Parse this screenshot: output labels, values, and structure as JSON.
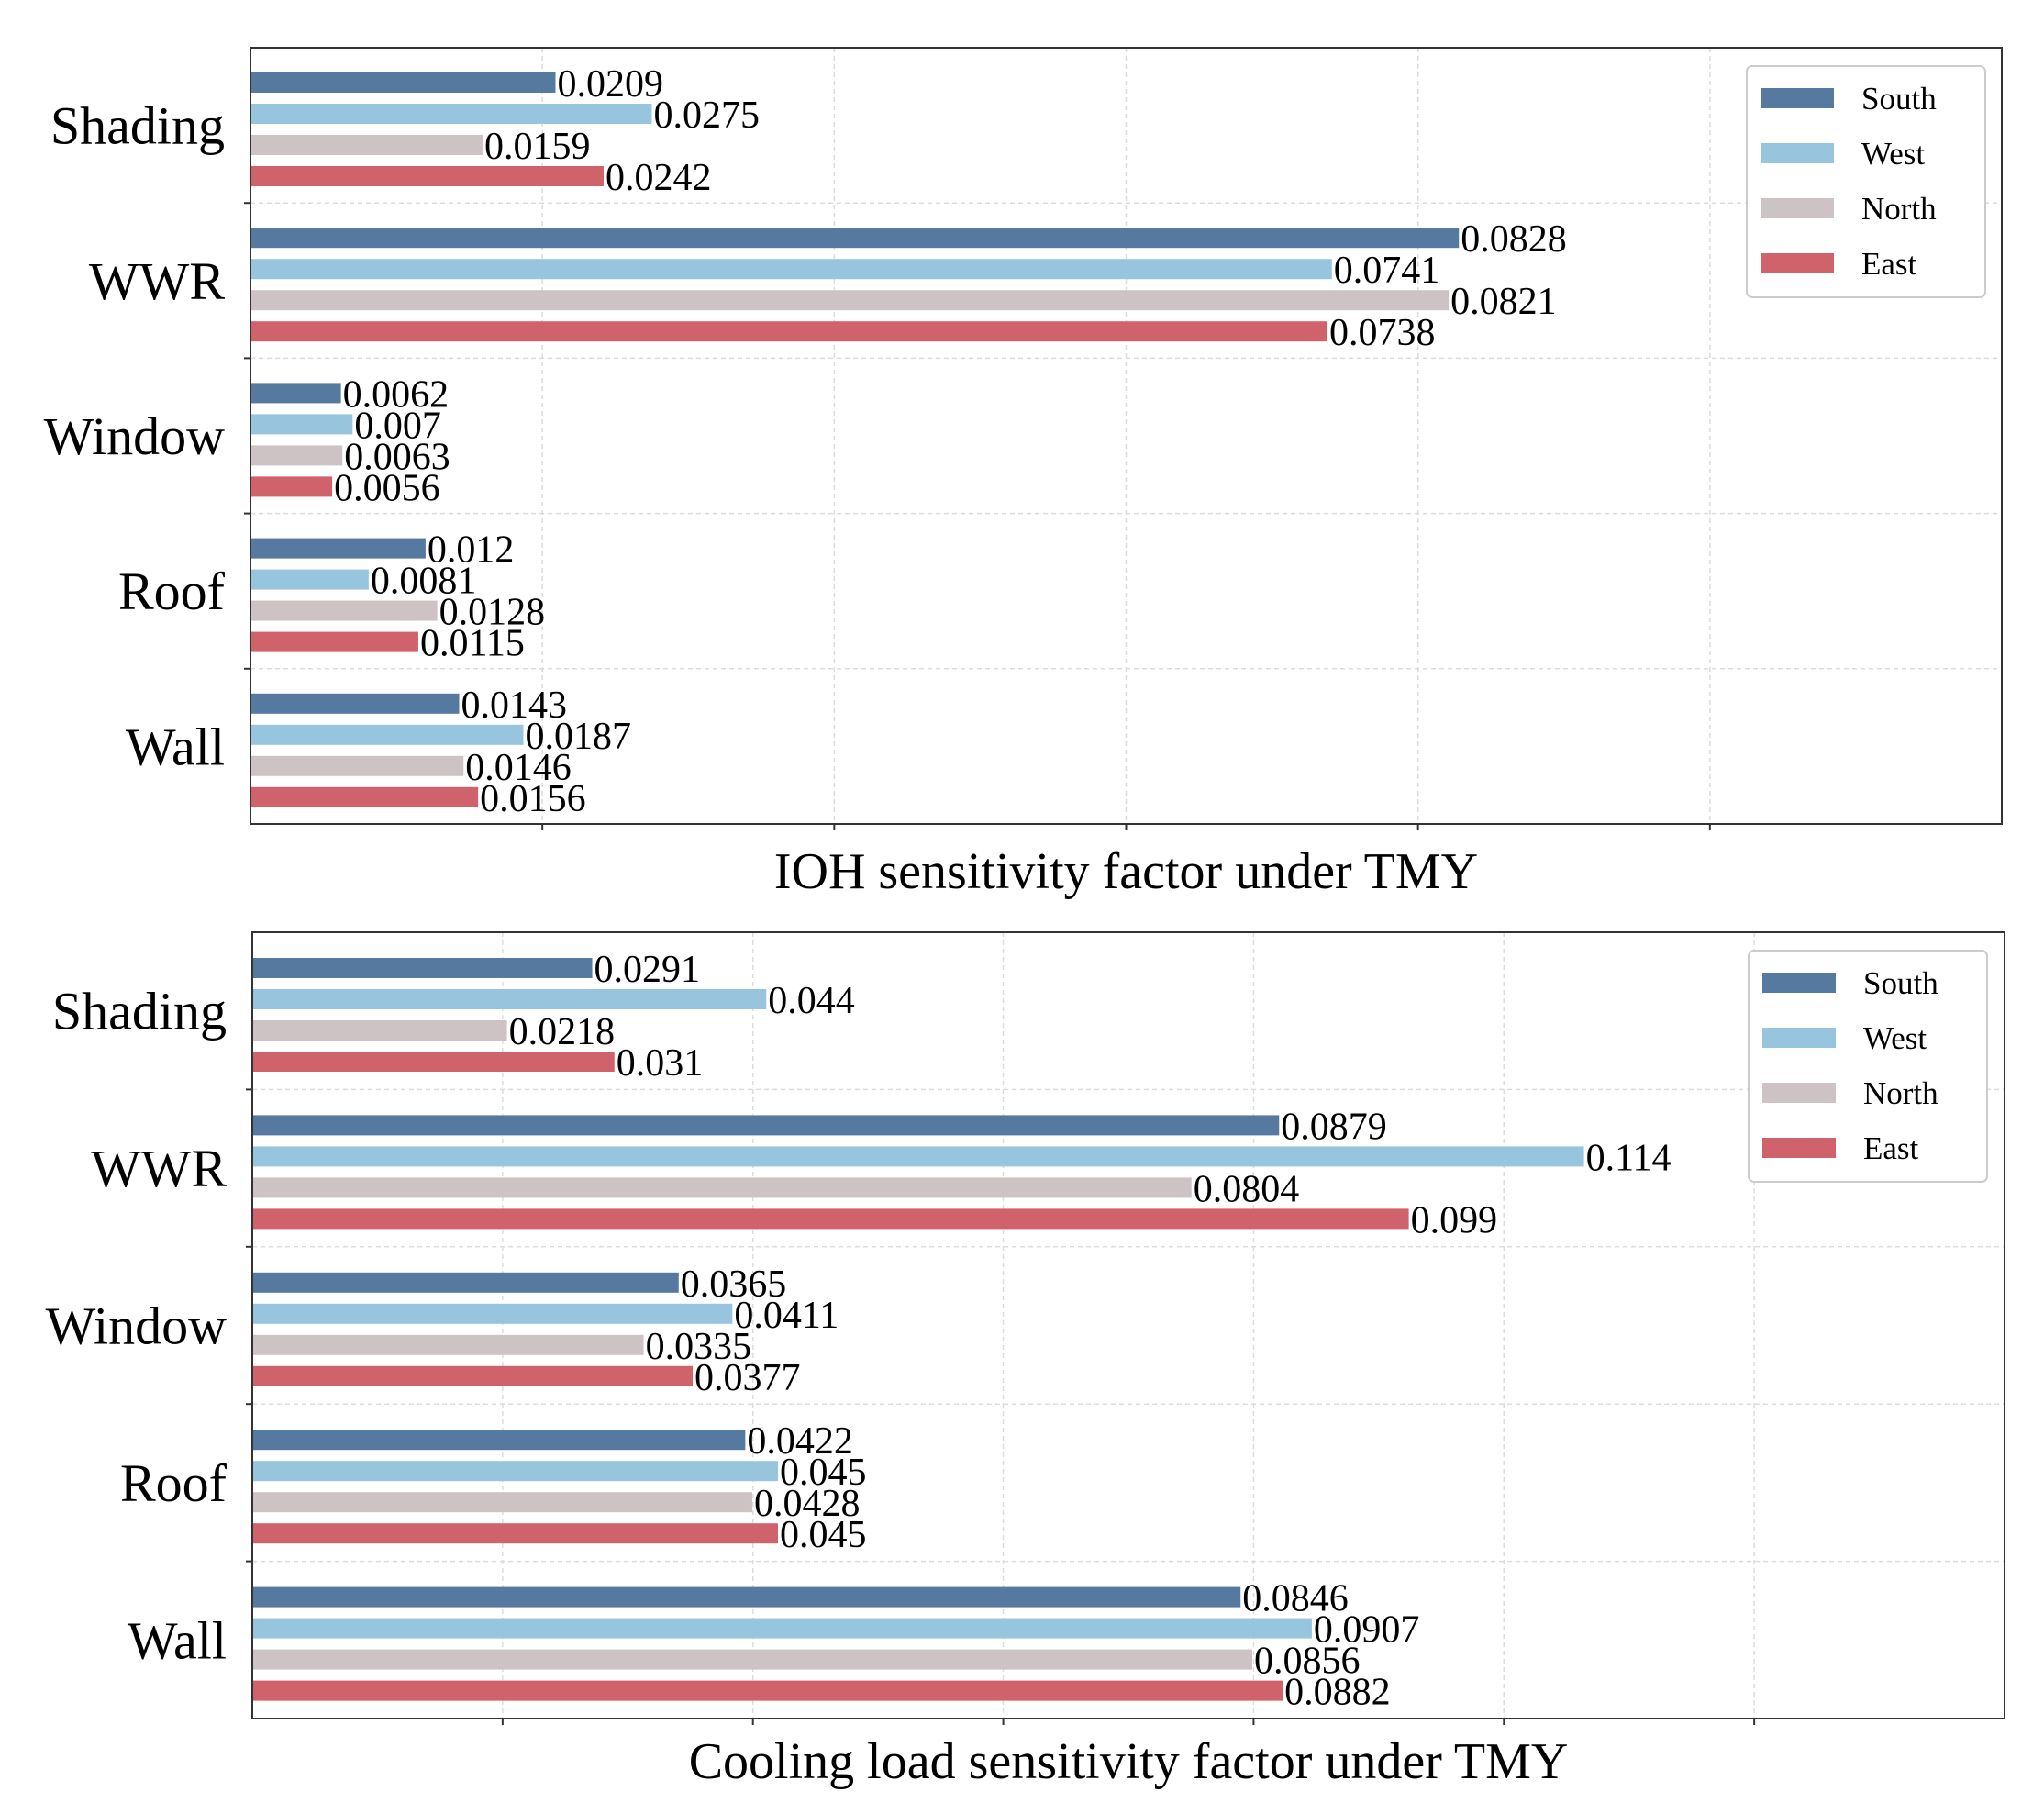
{
  "chart_data": [
    {
      "type": "bar",
      "orientation": "horizontal",
      "title": "",
      "xlabel": "IOH sensitivity factor under TMY",
      "ylabel": "",
      "categories": [
        "Shading",
        "WWR",
        "Window",
        "Roof",
        "Wall"
      ],
      "xlim": [
        0,
        0.12
      ],
      "grid": true,
      "legend_position": "top-right",
      "series": [
        {
          "name": "South",
          "color": "#56799f",
          "values": [
            0.0209,
            0.0828,
            0.0062,
            0.012,
            0.0143
          ],
          "labels": [
            "0.0209",
            "0.0828",
            "0.0062",
            "0.012",
            "0.0143"
          ]
        },
        {
          "name": "West",
          "color": "#98c5de",
          "values": [
            0.0275,
            0.0741,
            0.007,
            0.0081,
            0.0187
          ],
          "labels": [
            "0.0275",
            "0.0741",
            "0.007",
            "0.0081",
            "0.0187"
          ]
        },
        {
          "name": "North",
          "color": "#cdc3c5",
          "values": [
            0.0159,
            0.0821,
            0.0063,
            0.0128,
            0.0146
          ],
          "labels": [
            "0.0159",
            "0.0821",
            "0.0063",
            "0.0128",
            "0.0146"
          ]
        },
        {
          "name": "East",
          "color": "#cf626b",
          "values": [
            0.0242,
            0.0738,
            0.0056,
            0.0115,
            0.0156
          ],
          "labels": [
            "0.0242",
            "0.0738",
            "0.0056",
            "0.0115",
            "0.0156"
          ]
        }
      ]
    },
    {
      "type": "bar",
      "orientation": "horizontal",
      "title": "",
      "xlabel": "Cooling load sensitivity factor under TMY",
      "ylabel": "",
      "categories": [
        "Shading",
        "WWR",
        "Window",
        "Roof",
        "Wall"
      ],
      "xlim": [
        0,
        0.15
      ],
      "grid": true,
      "legend_position": "top-right",
      "series": [
        {
          "name": "South",
          "color": "#56799f",
          "values": [
            0.0291,
            0.0879,
            0.0365,
            0.0422,
            0.0846
          ],
          "labels": [
            "0.0291",
            "0.0879",
            "0.0365",
            "0.0422",
            "0.0846"
          ]
        },
        {
          "name": "West",
          "color": "#98c5de",
          "values": [
            0.044,
            0.114,
            0.0411,
            0.045,
            0.0907
          ],
          "labels": [
            "0.044",
            "0.114",
            "0.0411",
            "0.045",
            "0.0907"
          ]
        },
        {
          "name": "North",
          "color": "#cdc3c5",
          "values": [
            0.0218,
            0.0804,
            0.0335,
            0.0428,
            0.0856
          ],
          "labels": [
            "0.0218",
            "0.0804",
            "0.0335",
            "0.0428",
            "0.0856"
          ]
        },
        {
          "name": "East",
          "color": "#cf626b",
          "values": [
            0.031,
            0.099,
            0.0377,
            0.045,
            0.0882
          ],
          "labels": [
            "0.031",
            "0.099",
            "0.0377",
            "0.045",
            "0.0882"
          ]
        }
      ]
    }
  ]
}
